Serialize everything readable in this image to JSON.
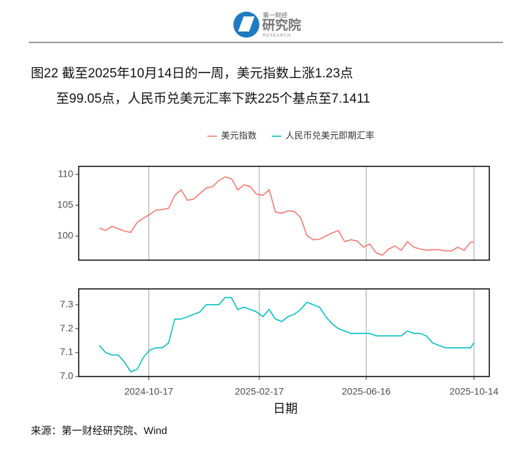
{
  "logo": {
    "top": "第一财经",
    "main": "研究院",
    "sub": "RESEARCH"
  },
  "title": [
    "图22  截至2025年10月14日的一周，美元指数上涨1.23点",
    "至99.05点，人民币兑美元汇率下跌225个基点至7.1411"
  ],
  "source": "来源：第一财经研究院、Wind",
  "chart_data": [
    {
      "type": "line",
      "legend": "top",
      "grid": true,
      "xtick_labels": false,
      "x": [
        "2024-08-23",
        "2024-08-30",
        "2024-09-06",
        "2024-09-13",
        "2024-09-20",
        "2024-09-27",
        "2024-10-04",
        "2024-10-11",
        "2024-10-18",
        "2024-10-25",
        "2024-11-01",
        "2024-11-08",
        "2024-11-15",
        "2024-11-22",
        "2024-11-29",
        "2024-12-06",
        "2024-12-13",
        "2024-12-20",
        "2024-12-27",
        "2025-01-03",
        "2025-01-10",
        "2025-01-17",
        "2025-01-24",
        "2025-01-31",
        "2025-02-07",
        "2025-02-14",
        "2025-02-21",
        "2025-02-28",
        "2025-03-07",
        "2025-03-14",
        "2025-03-21",
        "2025-03-28",
        "2025-04-04",
        "2025-04-11",
        "2025-04-18",
        "2025-04-25",
        "2025-05-02",
        "2025-05-09",
        "2025-05-16",
        "2025-05-23",
        "2025-05-30",
        "2025-06-06",
        "2025-06-13",
        "2025-06-20",
        "2025-06-27",
        "2025-07-04",
        "2025-07-11",
        "2025-07-18",
        "2025-07-25",
        "2025-08-01",
        "2025-08-08",
        "2025-08-15",
        "2025-08-22",
        "2025-08-29",
        "2025-09-05",
        "2025-09-12",
        "2025-09-19",
        "2025-09-26",
        "2025-10-03",
        "2025-10-10",
        "2025-10-14"
      ],
      "xlim": [
        "2024-07-31",
        "2025-10-31"
      ],
      "xticks": [
        "2024-10-17",
        "2025-02-17",
        "2025-06-16",
        "2025-10-14"
      ],
      "ylim": [
        96.1,
        111.3
      ],
      "yticks": [
        100,
        105,
        110
      ],
      "series": [
        {
          "name": "美元指数",
          "color": "#F8766D",
          "values": [
            101.3,
            100.9,
            101.6,
            101.2,
            100.8,
            100.6,
            102.2,
            102.9,
            103.5,
            104.2,
            104.3,
            104.5,
            106.6,
            107.5,
            105.8,
            106.0,
            106.9,
            107.8,
            108.0,
            109.0,
            109.6,
            109.3,
            107.5,
            108.3,
            108.0,
            106.8,
            106.6,
            107.5,
            103.9,
            103.7,
            104.1,
            104.0,
            103.0,
            100.1,
            99.4,
            99.5,
            100.0,
            100.5,
            100.9,
            99.1,
            99.4,
            99.2,
            98.2,
            98.7,
            97.3,
            96.9,
            97.9,
            98.4,
            97.7,
            99.1,
            98.2,
            97.9,
            97.7,
            97.8,
            97.8,
            97.6,
            97.6,
            98.2,
            97.7,
            99.0,
            99.05
          ]
        }
      ]
    },
    {
      "type": "line",
      "grid": true,
      "x_label": "日期",
      "x": [
        "2024-08-23",
        "2024-08-30",
        "2024-09-06",
        "2024-09-13",
        "2024-09-20",
        "2024-09-27",
        "2024-10-04",
        "2024-10-11",
        "2024-10-18",
        "2024-10-25",
        "2024-11-01",
        "2024-11-08",
        "2024-11-15",
        "2024-11-22",
        "2024-11-29",
        "2024-12-06",
        "2024-12-13",
        "2024-12-20",
        "2024-12-27",
        "2025-01-03",
        "2025-01-10",
        "2025-01-17",
        "2025-01-24",
        "2025-01-31",
        "2025-02-07",
        "2025-02-14",
        "2025-02-21",
        "2025-02-28",
        "2025-03-07",
        "2025-03-14",
        "2025-03-21",
        "2025-03-28",
        "2025-04-04",
        "2025-04-11",
        "2025-04-18",
        "2025-04-25",
        "2025-05-02",
        "2025-05-09",
        "2025-05-16",
        "2025-05-23",
        "2025-05-30",
        "2025-06-06",
        "2025-06-13",
        "2025-06-20",
        "2025-06-27",
        "2025-07-04",
        "2025-07-11",
        "2025-07-18",
        "2025-07-25",
        "2025-08-01",
        "2025-08-08",
        "2025-08-15",
        "2025-08-22",
        "2025-08-29",
        "2025-09-05",
        "2025-09-12",
        "2025-09-19",
        "2025-09-26",
        "2025-10-03",
        "2025-10-10",
        "2025-10-14"
      ],
      "xlim": [
        "2024-07-31",
        "2025-10-31"
      ],
      "xticks": [
        "2024-10-17",
        "2025-02-17",
        "2025-06-16",
        "2025-10-14"
      ],
      "ylim": [
        7.0,
        7.366
      ],
      "yticks": [
        {
          "value": 7,
          "label": "7.0"
        },
        7.1,
        7.2,
        7.3
      ],
      "series": [
        {
          "name": "人民币兑美元即期汇率",
          "color": "#00BFC4",
          "values": [
            7.13,
            7.1,
            7.09,
            7.09,
            7.06,
            7.02,
            7.03,
            7.08,
            7.11,
            7.12,
            7.12,
            7.14,
            7.24,
            7.24,
            7.25,
            7.26,
            7.27,
            7.3,
            7.3,
            7.3,
            7.33,
            7.33,
            7.28,
            7.29,
            7.28,
            7.27,
            7.25,
            7.28,
            7.24,
            7.23,
            7.25,
            7.26,
            7.28,
            7.31,
            7.3,
            7.29,
            7.25,
            7.22,
            7.2,
            7.19,
            7.18,
            7.18,
            7.18,
            7.18,
            7.17,
            7.17,
            7.17,
            7.17,
            7.17,
            7.19,
            7.18,
            7.18,
            7.17,
            7.14,
            7.13,
            7.12,
            7.12,
            7.12,
            7.12,
            7.12,
            7.1411
          ]
        }
      ]
    }
  ]
}
